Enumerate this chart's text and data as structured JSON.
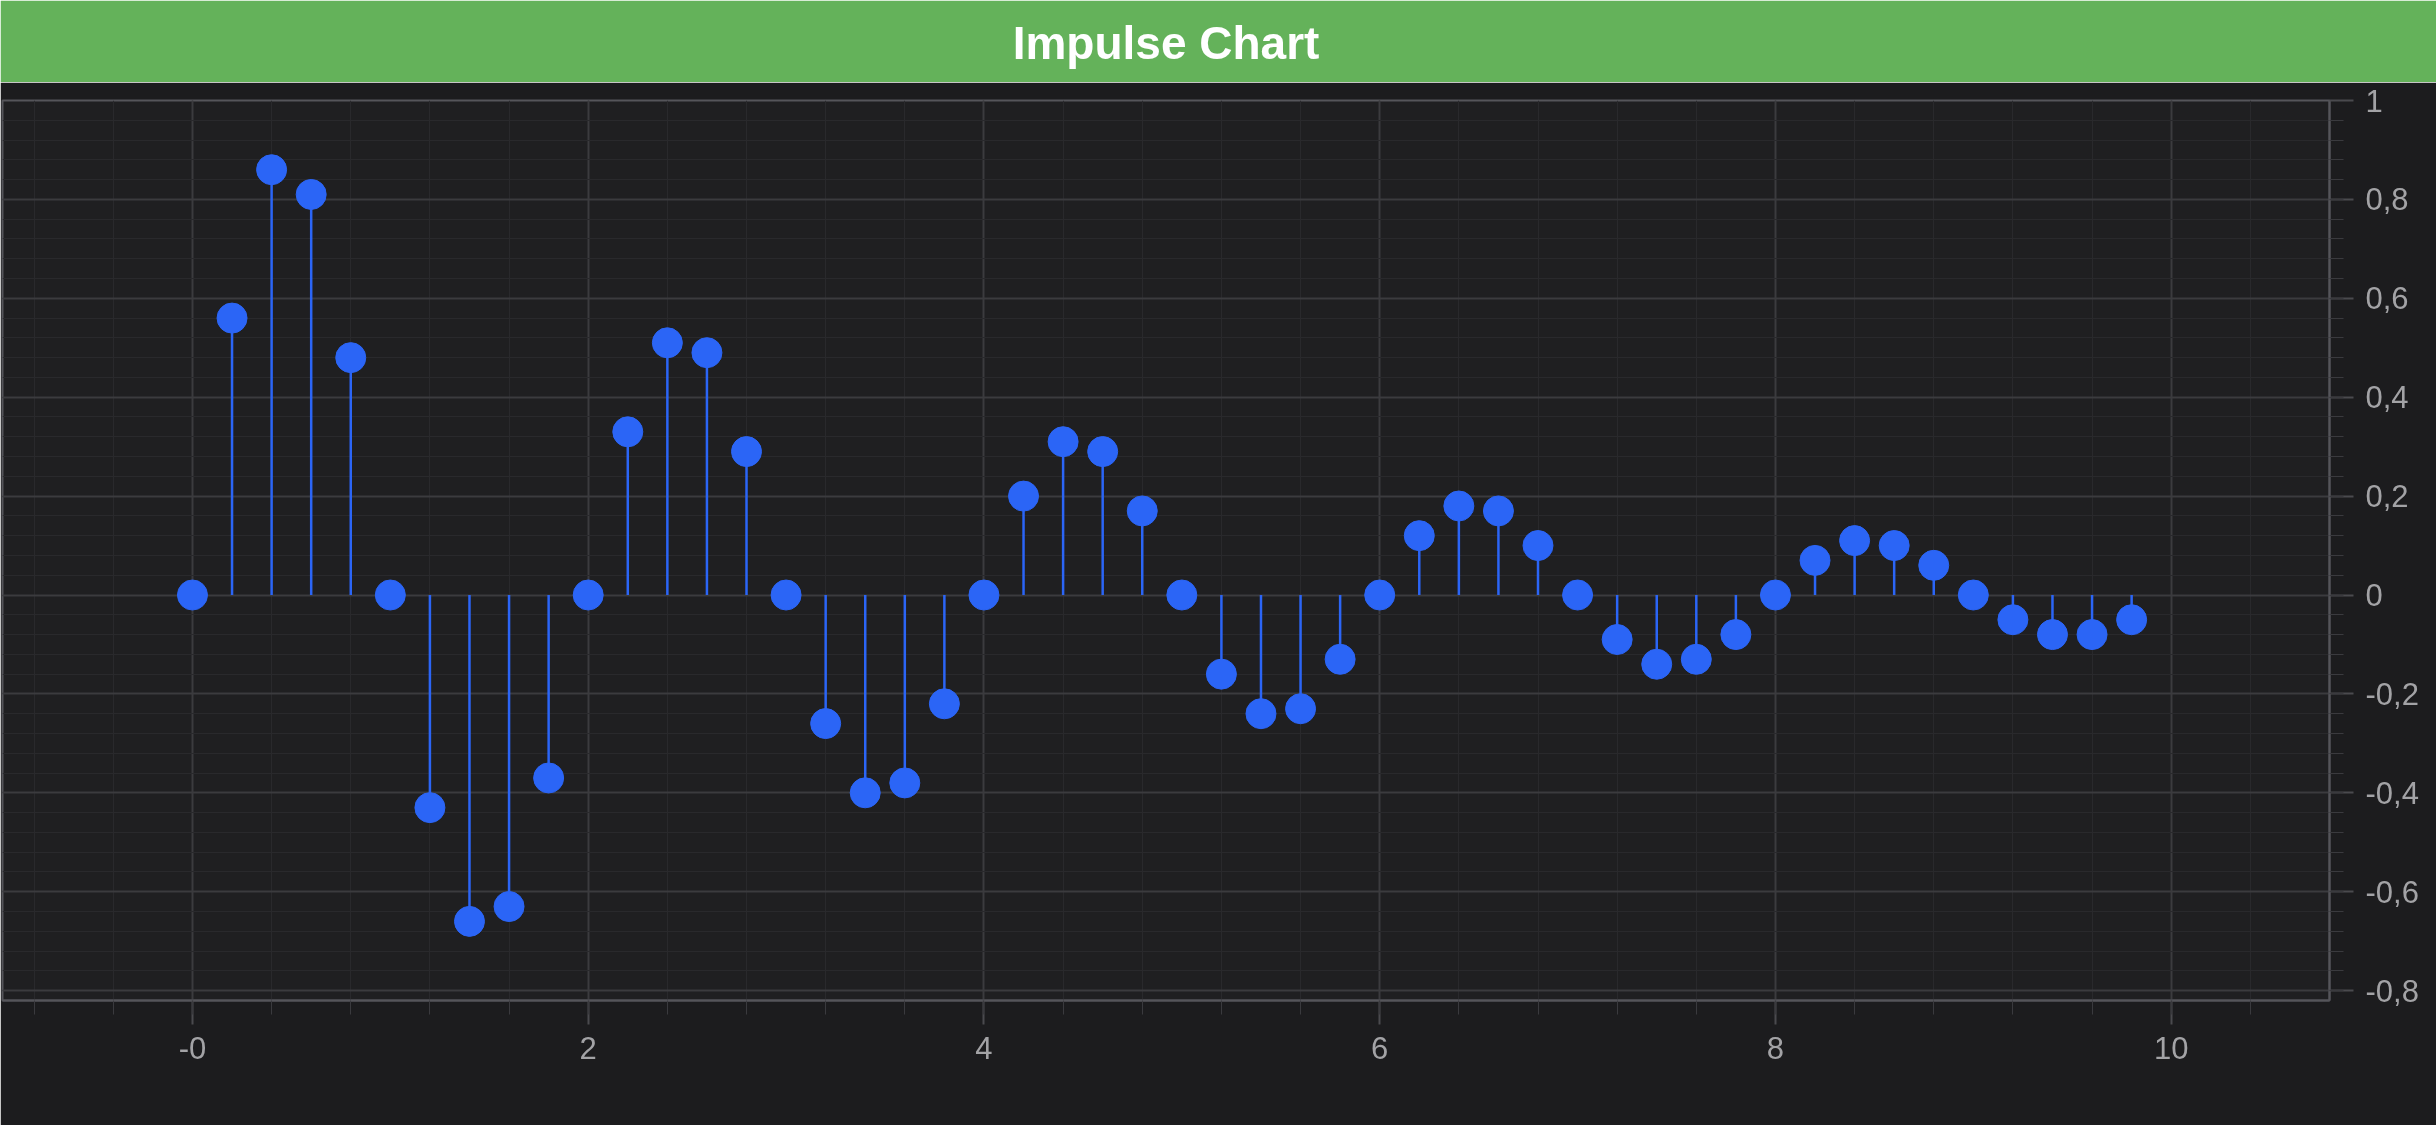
{
  "chart_data": {
    "type": "lollipop",
    "title": "Impulse Chart",
    "x": [
      0,
      0.2,
      0.4,
      0.6,
      0.8,
      1,
      1.2,
      1.4,
      1.6,
      1.8,
      2,
      2.2,
      2.4,
      2.6,
      2.8,
      3,
      3.2,
      3.4,
      3.6,
      3.8,
      4,
      4.2,
      4.4,
      4.6,
      4.8,
      5,
      5.2,
      5.4,
      5.6,
      5.8,
      6,
      6.2,
      6.4,
      6.6,
      6.8,
      7,
      7.2,
      7.4,
      7.6,
      7.8,
      8,
      8.2,
      8.4,
      8.6,
      8.8,
      9,
      9.2,
      9.4,
      9.6,
      9.8
    ],
    "values": [
      0,
      0.56,
      0.86,
      0.81,
      0.48,
      0,
      -0.43,
      -0.66,
      -0.63,
      -0.37,
      0,
      0.33,
      0.51,
      0.49,
      0.29,
      0,
      -0.26,
      -0.4,
      -0.38,
      -0.22,
      0,
      0.2,
      0.31,
      0.29,
      0.17,
      0,
      -0.16,
      -0.24,
      -0.23,
      -0.13,
      0,
      0.12,
      0.18,
      0.17,
      0.1,
      0,
      -0.09,
      -0.14,
      -0.13,
      -0.08,
      0,
      0.07,
      0.11,
      0.1,
      0.06,
      0,
      -0.05,
      -0.08,
      -0.08,
      -0.05
    ],
    "color": "#2b65f6",
    "marker": "circle",
    "grid": true,
    "xlim": [
      -0.96,
      10.8
    ],
    "ylim": [
      -0.82,
      1.0
    ],
    "xticks": [
      {
        "value": 0,
        "label": "-0"
      },
      2,
      4,
      6,
      8,
      10
    ],
    "yticks": [
      {
        "value": -0.8,
        "label": "-0,8"
      },
      {
        "value": -0.6,
        "label": "-0,6"
      },
      {
        "value": -0.4,
        "label": "-0,4"
      },
      {
        "value": -0.2,
        "label": "-0,2"
      },
      0,
      {
        "value": 0.2,
        "label": "0,2"
      },
      {
        "value": 0.4,
        "label": "0,4"
      },
      {
        "value": 0.6,
        "label": "0,6"
      },
      {
        "value": 0.8,
        "label": "0,8"
      },
      1
    ]
  }
}
